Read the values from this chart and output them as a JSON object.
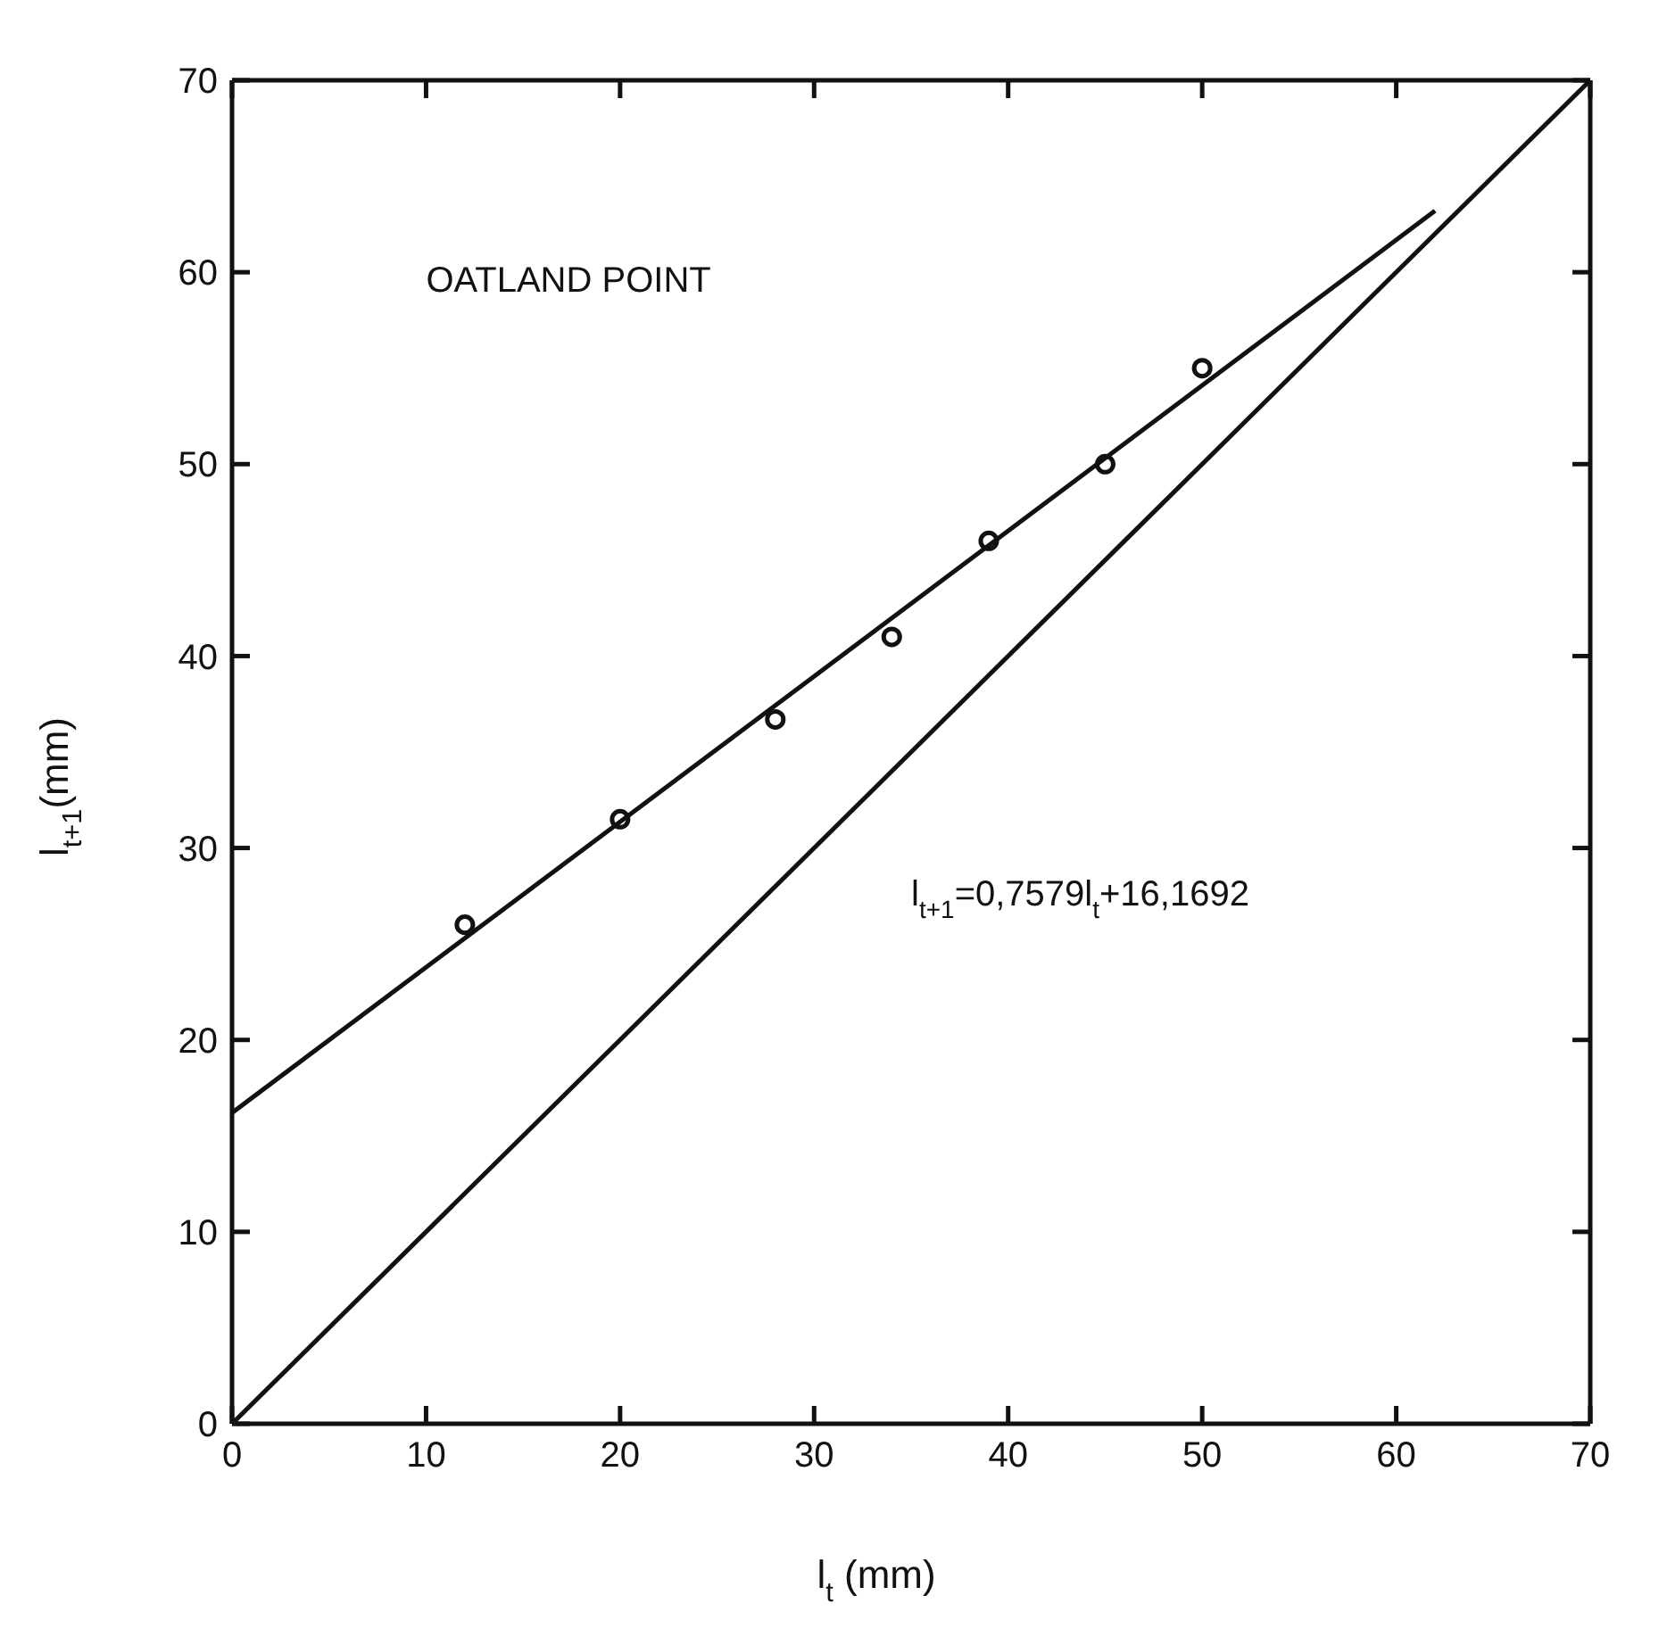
{
  "chart_data": {
    "type": "scatter",
    "xlabel": "l$_{t}$ (mm)",
    "ylabel": "l$_{t+1}$(mm)",
    "annotations": [
      "OATLAND POINT",
      "l$_{t+1}$=0,7579l$_{t}$+16,1692"
    ],
    "xlim": [
      0,
      70
    ],
    "ylim": [
      0,
      70
    ],
    "xticks": [
      0,
      10,
      20,
      30,
      40,
      50,
      60,
      70
    ],
    "yticks": [
      0,
      10,
      20,
      30,
      40,
      50,
      60,
      70
    ],
    "grid": false,
    "marker": "circle",
    "series": [
      {
        "color": "#111111",
        "x": [
          12,
          20,
          28,
          34,
          39,
          45,
          50
        ],
        "values": [
          26,
          31.5,
          36.7,
          41,
          46,
          50,
          55
        ]
      },
      {
        "type": "line",
        "marker": "none",
        "color": "#111111",
        "x": [
          0,
          62
        ],
        "values": [
          16.2,
          63.2
        ]
      },
      {
        "type": "line",
        "marker": "none",
        "color": "#111111",
        "x": [
          0,
          70
        ],
        "values": [
          0,
          70
        ]
      }
    ]
  }
}
